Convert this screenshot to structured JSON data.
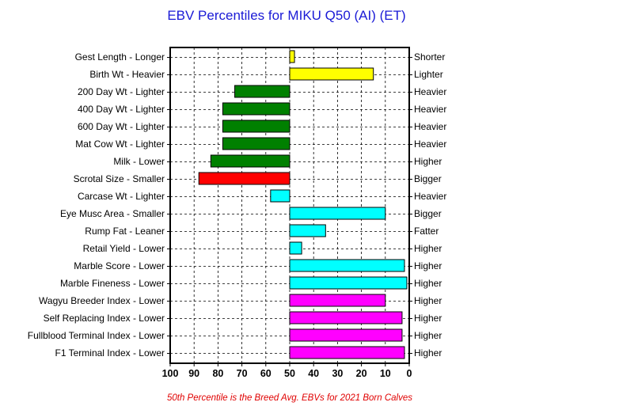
{
  "chart_data": {
    "type": "bar",
    "title": "EBV Percentiles for MIKU Q50 (AI) (ET)",
    "footnote": "50th Percentile is the Breed Avg. EBVs for 2021 Born Calves",
    "xlim": [
      100,
      0
    ],
    "baseline": 50,
    "xticks": [
      100,
      90,
      80,
      70,
      60,
      50,
      40,
      30,
      20,
      10,
      0
    ],
    "grid": true,
    "colors": {
      "yellow": "#ffff00",
      "green": "#008000",
      "red": "#ff0000",
      "cyan": "#00ffff",
      "magenta": "#ff00ff"
    },
    "rows": [
      {
        "left_label": "Gest Length - Longer",
        "right_label": "Shorter",
        "value": 48,
        "color": "yellow"
      },
      {
        "left_label": "Birth Wt - Heavier",
        "right_label": "Lighter",
        "value": 15,
        "color": "yellow"
      },
      {
        "left_label": "200 Day Wt - Lighter",
        "right_label": "Heavier",
        "value": 73,
        "color": "green"
      },
      {
        "left_label": "400 Day Wt - Lighter",
        "right_label": "Heavier",
        "value": 78,
        "color": "green"
      },
      {
        "left_label": "600 Day Wt - Lighter",
        "right_label": "Heavier",
        "value": 78,
        "color": "green"
      },
      {
        "left_label": "Mat Cow Wt - Lighter",
        "right_label": "Heavier",
        "value": 78,
        "color": "green"
      },
      {
        "left_label": "Milk - Lower",
        "right_label": "Higher",
        "value": 83,
        "color": "green"
      },
      {
        "left_label": "Scrotal Size - Smaller",
        "right_label": "Bigger",
        "value": 88,
        "color": "red"
      },
      {
        "left_label": "Carcase Wt - Lighter",
        "right_label": "Heavier",
        "value": 58,
        "color": "cyan"
      },
      {
        "left_label": "Eye Musc Area - Smaller",
        "right_label": "Bigger",
        "value": 10,
        "color": "cyan"
      },
      {
        "left_label": "Rump Fat - Leaner",
        "right_label": "Fatter",
        "value": 35,
        "color": "cyan"
      },
      {
        "left_label": "Retail Yield - Lower",
        "right_label": "Higher",
        "value": 45,
        "color": "cyan"
      },
      {
        "left_label": "Marble Score - Lower",
        "right_label": "Higher",
        "value": 2,
        "color": "cyan"
      },
      {
        "left_label": "Marble Fineness - Lower",
        "right_label": "Higher",
        "value": 1,
        "color": "cyan"
      },
      {
        "left_label": "Wagyu Breeder Index - Lower",
        "right_label": "Higher",
        "value": 10,
        "color": "magenta"
      },
      {
        "left_label": "Self Replacing Index - Lower",
        "right_label": "Higher",
        "value": 3,
        "color": "magenta"
      },
      {
        "left_label": "Fullblood Terminal Index - Lower",
        "right_label": "Higher",
        "value": 3,
        "color": "magenta"
      },
      {
        "left_label": "F1 Terminal Index - Lower",
        "right_label": "Higher",
        "value": 2,
        "color": "magenta"
      }
    ]
  }
}
